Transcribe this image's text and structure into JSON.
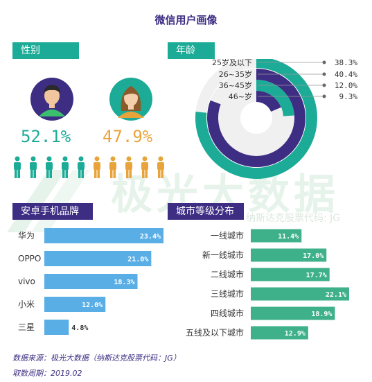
{
  "page_title": "微信用户画像",
  "sections": {
    "gender": "性别",
    "age": "年龄",
    "android": "安卓手机品牌",
    "city": "城市等级分布"
  },
  "gender": {
    "male_pct": "52.1%",
    "female_pct": "47.9%",
    "male_color": "#1bab96",
    "female_color": "#e8a43a",
    "male_icons": 5,
    "female_icons": 5
  },
  "watermark": {
    "text": "极光大数据",
    "subtext": "纳斯达克股票代码: JG"
  },
  "footer": {
    "source": "数据来源：极光大数据（纳斯达克股票代码：JG）",
    "period": "取数周期：2019.02"
  },
  "chart_data": [
    {
      "type": "radial-bar",
      "categories": [
        "25岁及以下",
        "26~35岁",
        "36~45岁",
        "46~岁"
      ],
      "values": [
        38.3,
        40.4,
        12.0,
        9.3
      ],
      "labels": [
        "38.3%",
        "40.4%",
        "12.0%",
        "9.3%"
      ],
      "colors": [
        "#1bab96",
        "#3d2d83",
        "#1bab96",
        "#3d2d83"
      ],
      "max": 50
    },
    {
      "type": "bar",
      "orientation": "horizontal",
      "categories": [
        "华为",
        "OPPO",
        "vivo",
        "小米",
        "三星"
      ],
      "values": [
        23.4,
        21.0,
        18.3,
        12.0,
        4.8
      ],
      "labels": [
        "23.4%",
        "21.0%",
        "18.3%",
        "12.0%",
        "4.8%"
      ],
      "color": "#5aaee6",
      "max": 23.4
    },
    {
      "type": "bar",
      "orientation": "horizontal",
      "categories": [
        "一线城市",
        "新一线城市",
        "二线城市",
        "三线城市",
        "四线城市",
        "五线及以下城市"
      ],
      "values": [
        11.4,
        17.0,
        17.7,
        22.1,
        18.9,
        12.9
      ],
      "labels": [
        "11.4%",
        "17.0%",
        "17.7%",
        "22.1%",
        "18.9%",
        "12.9%"
      ],
      "color": "#3fb18a",
      "max": 22.1
    }
  ]
}
